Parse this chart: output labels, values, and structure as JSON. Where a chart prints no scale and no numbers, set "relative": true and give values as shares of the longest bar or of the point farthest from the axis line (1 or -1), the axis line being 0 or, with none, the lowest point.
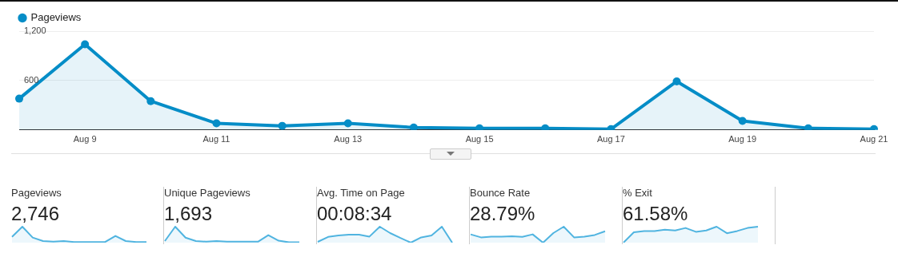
{
  "chart_data": [
    {
      "type": "area",
      "categories": [
        null,
        "Aug 9",
        null,
        "Aug 11",
        null,
        "Aug 13",
        null,
        "Aug 15",
        null,
        "Aug 17",
        null,
        "Aug 19",
        null,
        "Aug 21"
      ],
      "series": [
        {
          "name": "Pageviews",
          "color": "#058dc7",
          "values": [
            380,
            1040,
            350,
            80,
            50,
            80,
            30,
            20,
            20,
            10,
            590,
            110,
            20,
            10
          ]
        }
      ],
      "ylim": [
        0,
        1200
      ],
      "yticks": [
        600,
        {
          "value": 1200,
          "label": "1,200"
        }
      ],
      "grid": "y",
      "legend": "top left",
      "marker": "circle",
      "line_style": "solid"
    },
    {
      "type": "area",
      "title": "Pageviews",
      "subtitle": "2,746",
      "relative": true,
      "marker": "none",
      "categories": [
        null,
        null,
        null,
        null,
        null,
        null,
        null,
        null,
        null,
        null,
        null,
        null,
        null,
        null
      ],
      "series": [
        {
          "color": "#50b4e0",
          "values": [
            0.36,
            1,
            0.32,
            0.1,
            0.06,
            0.1,
            0.04,
            0.04,
            0.04,
            0.04,
            0.42,
            0.1,
            0.04,
            0.04
          ]
        }
      ]
    },
    {
      "type": "area",
      "title": "Unique Pageviews",
      "subtitle": "1,693",
      "relative": true,
      "marker": "none",
      "categories": [
        null,
        null,
        null,
        null,
        null,
        null,
        null,
        null,
        null,
        null,
        null,
        null,
        null,
        null
      ],
      "series": [
        {
          "color": "#50b4e0",
          "values": [
            0.1,
            1,
            0.31,
            0.1,
            0.06,
            0.1,
            0.06,
            0.06,
            0.06,
            0.06,
            0.47,
            0.12,
            0.02,
            0.02
          ]
        }
      ]
    },
    {
      "type": "area",
      "title": "Avg. Time on Page",
      "subtitle": "00:08:34",
      "relative": true,
      "marker": "none",
      "categories": [
        null,
        null,
        null,
        null,
        null,
        null,
        null,
        null,
        null,
        null,
        null,
        null,
        null,
        null
      ],
      "series": [
        {
          "color": "#50b4e0",
          "values": [
            0.05,
            0.36,
            0.45,
            0.5,
            0.5,
            0.38,
            1,
            0.6,
            0.29,
            0,
            0.33,
            0.45,
            1,
            0
          ]
        }
      ]
    },
    {
      "type": "area",
      "title": "Bounce Rate",
      "subtitle": "28.79%",
      "relative": true,
      "marker": "none",
      "categories": [
        null,
        null,
        null,
        null,
        null,
        null,
        null,
        null,
        null,
        null,
        null,
        null,
        null,
        null
      ],
      "series": [
        {
          "color": "#50b4e0",
          "values": [
            0.52,
            0.33,
            0.38,
            0.38,
            0.4,
            0.36,
            0.52,
            0,
            0.6,
            1,
            0.33,
            0.38,
            0.48,
            0.71
          ]
        }
      ]
    },
    {
      "type": "area",
      "title": "% Exit",
      "subtitle": "61.58%",
      "relative": true,
      "marker": "none",
      "categories": [
        null,
        null,
        null,
        null,
        null,
        null,
        null,
        null,
        null,
        null,
        null,
        null,
        null,
        null
      ],
      "series": [
        {
          "color": "#50b4e0",
          "values": [
            0,
            0.65,
            0.73,
            0.73,
            0.81,
            0.76,
            0.92,
            0.68,
            0.76,
            1,
            0.59,
            0.73,
            0.92,
            1
          ]
        }
      ]
    }
  ]
}
